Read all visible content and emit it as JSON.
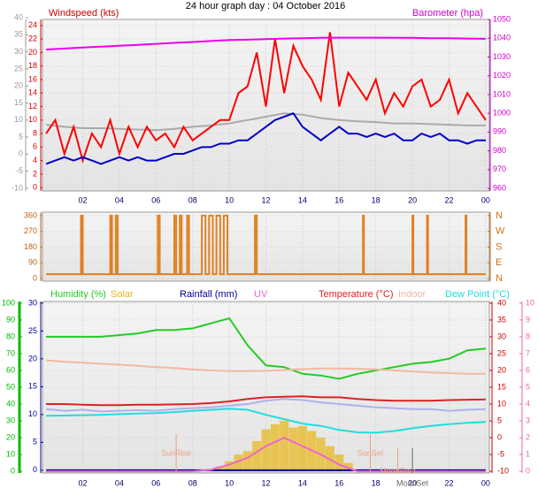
{
  "chart_data": [
    {
      "type": "line",
      "title": "24 hour graph day : 04 October 2016",
      "ylabel": "Windspeed (kts)",
      "y2label": "Barometer (hpa)",
      "xlim": [
        -0.2,
        24.2
      ],
      "xticks": [
        {
          "value": 2,
          "label": "02"
        },
        {
          "value": 4,
          "label": "04"
        },
        {
          "value": 6,
          "label": "06"
        },
        {
          "value": 8,
          "label": "08"
        },
        10,
        12,
        14,
        16,
        18,
        20,
        22,
        {
          "value": 24,
          "label": "00"
        }
      ],
      "ylim": [
        -0.5,
        24.9
      ],
      "yticks": [
        0,
        2,
        4,
        6,
        8,
        10,
        12,
        14,
        16,
        18,
        20,
        22,
        24
      ],
      "y2lim": [
        958.6,
        1050
      ],
      "y2ticks": [
        960,
        970,
        980,
        990,
        1000,
        1010,
        1020,
        1030,
        1040,
        1050
      ],
      "y3lim": [
        -10.8,
        39.5
      ],
      "y3ticks": [
        -10,
        -5,
        0,
        5,
        10,
        15,
        20,
        25,
        30,
        35,
        40
      ],
      "axis_colors": {
        "y": "#cc0000",
        "y2": "#cc00cc",
        "y3": "#999999"
      },
      "grid": true,
      "x": [
        0,
        1,
        2,
        3,
        4,
        5,
        6,
        7,
        8,
        9,
        10,
        11,
        12,
        13,
        14,
        15,
        16,
        17,
        18,
        19,
        20,
        21,
        22,
        23,
        24
      ],
      "series": [
        {
          "color": "#aaaaaa",
          "axis": "y",
          "values": [
            9.3,
            9,
            8.8,
            8.8,
            8.7,
            8.6,
            8.5,
            8.7,
            9,
            9.2,
            9.5,
            10,
            10.5,
            11,
            10.8,
            10.3,
            10,
            9.8,
            9.7,
            9.5,
            9.5,
            9.4,
            9.3,
            9.2,
            9.2
          ]
        },
        {
          "color": "#ff0000",
          "axis": "y",
          "x": [
            0,
            0.5,
            1,
            1.5,
            2,
            2.5,
            3,
            3.5,
            4,
            4.5,
            5,
            5.5,
            6,
            6.5,
            7,
            7.5,
            8,
            8.5,
            9,
            9.5,
            10,
            10.5,
            11,
            11.5,
            12,
            12.5,
            13,
            13.5,
            14,
            14.5,
            15,
            15.5,
            16,
            16.5,
            17,
            17.5,
            18,
            18.5,
            19,
            19.5,
            20,
            20.5,
            21,
            21.5,
            22,
            22.5,
            23,
            23.5,
            24
          ],
          "values": [
            8,
            10,
            5,
            9,
            4,
            8,
            6,
            10,
            5,
            9,
            6,
            9,
            7,
            8,
            6,
            9,
            7,
            8,
            9,
            10,
            10,
            14,
            15,
            20,
            12,
            22,
            14,
            21,
            18,
            16,
            13,
            23,
            12,
            17,
            15,
            13,
            16,
            11,
            14,
            12,
            15,
            16,
            12,
            13,
            16,
            11,
            14,
            12,
            10
          ]
        },
        {
          "color": "#0000cc",
          "axis": "y",
          "x": [
            0,
            0.5,
            1,
            1.5,
            2,
            2.5,
            3,
            3.5,
            4,
            4.5,
            5,
            5.5,
            6,
            6.5,
            7,
            7.5,
            8,
            8.5,
            9,
            9.5,
            10,
            10.5,
            11,
            11.5,
            12,
            12.5,
            13,
            13.5,
            14,
            14.5,
            15,
            15.5,
            16,
            16.5,
            17,
            17.5,
            18,
            18.5,
            19,
            19.5,
            20,
            20.5,
            21,
            21.5,
            22,
            22.5,
            23,
            23.5,
            24
          ],
          "values": [
            3.5,
            4,
            4.5,
            4,
            4.5,
            4,
            3.5,
            4,
            4.5,
            4,
            4.5,
            4,
            4,
            4.5,
            5,
            5,
            5.5,
            6,
            6,
            6.5,
            6.5,
            7,
            7,
            8,
            9,
            10,
            10.5,
            11,
            9,
            8,
            7,
            8,
            9,
            8,
            8,
            7.5,
            8,
            7.5,
            8,
            7,
            7,
            8,
            7.5,
            8,
            7,
            7,
            6.5,
            7,
            7
          ]
        },
        {
          "color": "#ee00ee",
          "axis": "y2",
          "values": [
            1034,
            1034.5,
            1035,
            1035.5,
            1036,
            1036.5,
            1037,
            1037.5,
            1038,
            1038.5,
            1039,
            1039.2,
            1039.5,
            1039.8,
            1040,
            1040.2,
            1040.3,
            1040.3,
            1040.3,
            1040.2,
            1040.2,
            1040,
            1040,
            1039.8,
            1039.7
          ]
        }
      ]
    },
    {
      "type": "line",
      "xlim": [
        -0.2,
        24.2
      ],
      "ylim": [
        -15,
        380
      ],
      "yticks": [
        0,
        90,
        180,
        270,
        360
      ],
      "y2lim": [
        -15,
        380
      ],
      "y2ticks": [
        {
          "value": 360,
          "label": "N"
        },
        {
          "value": 270,
          "label": "W"
        },
        {
          "value": 180,
          "label": "S"
        },
        {
          "value": 90,
          "label": "E"
        },
        {
          "value": 0,
          "label": "N"
        }
      ],
      "axis_colors": {
        "y": "#c06010",
        "y2": "#d07010"
      },
      "grid": true,
      "series": [
        {
          "color": "#e08020",
          "axis": "y",
          "x": [
            0,
            1.9,
            1.9,
            2.0,
            2.0,
            3.5,
            3.5,
            3.6,
            3.6,
            3.8,
            3.8,
            3.9,
            3.9,
            6.1,
            6.1,
            6.2,
            6.2,
            7.0,
            7.0,
            7.1,
            7.1,
            7.3,
            7.3,
            7.4,
            7.4,
            7.7,
            7.7,
            7.8,
            7.8,
            8.5,
            8.5,
            8.7,
            8.7,
            8.9,
            8.9,
            9.1,
            9.1,
            9.3,
            9.3,
            9.5,
            9.5,
            9.7,
            9.7,
            9.9,
            9.9,
            11.4,
            11.4,
            11.5,
            11.5,
            17.3,
            17.3,
            17.35,
            17.35,
            20.0,
            20.0,
            20.05,
            20.05,
            20.8,
            20.8,
            20.85,
            20.85,
            22.9,
            22.9,
            22.95,
            22.95,
            24
          ],
          "values": [
            25,
            25,
            360,
            360,
            25,
            25,
            360,
            360,
            25,
            25,
            360,
            360,
            25,
            25,
            360,
            360,
            25,
            25,
            360,
            360,
            25,
            25,
            360,
            360,
            25,
            25,
            360,
            360,
            25,
            25,
            360,
            360,
            25,
            25,
            360,
            360,
            25,
            25,
            360,
            360,
            25,
            25,
            360,
            360,
            25,
            25,
            360,
            360,
            25,
            25,
            360,
            360,
            25,
            25,
            360,
            360,
            25,
            25,
            360,
            360,
            25,
            25,
            360,
            360,
            25,
            25
          ]
        }
      ]
    },
    {
      "type": "line",
      "xlim": [
        -0.2,
        24.2
      ],
      "xticks": [
        {
          "value": 2,
          "label": "02"
        },
        {
          "value": 4,
          "label": "04"
        },
        {
          "value": 6,
          "label": "06"
        },
        {
          "value": 8,
          "label": "08"
        },
        10,
        12,
        14,
        16,
        18,
        20,
        22,
        {
          "value": 24,
          "label": "00"
        }
      ],
      "ylim": [
        -1,
        101
      ],
      "yticks": [
        0,
        10,
        20,
        30,
        40,
        50,
        60,
        70,
        80,
        90,
        100
      ],
      "y2lim": [
        -10.5,
        40.5
      ],
      "y2ticks": [
        -10,
        -5,
        0,
        5,
        10,
        15,
        20,
        25,
        30,
        35,
        40
      ],
      "y3lim": [
        -0.5,
        30.3
      ],
      "y3ticks": [
        0,
        5,
        10,
        15,
        20,
        25,
        30
      ],
      "y4lim": [
        -0.1,
        10.1
      ],
      "y4ticks": [
        0,
        1,
        2,
        3,
        4,
        5,
        6,
        7,
        8,
        9,
        10
      ],
      "axis_colors": {
        "y": "#00bb00",
        "y2": "#cc0000",
        "y3": "#000099",
        "y4": "#ee66aa"
      },
      "grid": true,
      "x": [
        0,
        1,
        2,
        3,
        4,
        5,
        6,
        7,
        8,
        9,
        10,
        11,
        12,
        13,
        14,
        15,
        16,
        17,
        18,
        19,
        20,
        21,
        22,
        23,
        24
      ],
      "series": [
        {
          "name": "Humidity (%)",
          "color": "#22cc22",
          "axis": "y",
          "values": [
            80,
            80,
            80,
            80,
            81,
            82,
            84,
            84,
            85,
            88,
            91,
            75,
            63,
            62,
            58,
            57,
            55,
            58,
            60,
            62,
            64,
            65,
            67,
            72,
            73
          ]
        },
        {
          "name": "Solar",
          "color": "#e8b820",
          "axis": "y",
          "style": "bars",
          "x": [
            9,
            9.5,
            10,
            10.5,
            11,
            11.5,
            12,
            12.5,
            13,
            13.5,
            14,
            14.5,
            15,
            15.5,
            16,
            16.5,
            17
          ],
          "values": [
            1,
            3,
            6,
            10,
            12,
            18,
            25,
            28,
            30,
            26,
            27,
            24,
            20,
            15,
            10,
            5,
            1
          ]
        },
        {
          "name": "Rainfall (mm)",
          "color": "#000099",
          "axis": "y3",
          "values": [
            0,
            0,
            0,
            0,
            0,
            0,
            0,
            0,
            0,
            0,
            0,
            0,
            0,
            0,
            0,
            0,
            0,
            0,
            0,
            0,
            0,
            0,
            0,
            0,
            0
          ]
        },
        {
          "name": "UV",
          "color": "#ee66cc",
          "axis": "y4",
          "values": [
            0,
            0,
            0,
            0,
            0,
            0,
            0,
            0,
            0,
            0.1,
            0.4,
            0.8,
            1.5,
            2,
            1.5,
            1,
            0.4,
            0,
            0,
            0,
            0,
            0,
            0,
            0,
            0
          ]
        },
        {
          "name": "Temperature (°C)",
          "color": "#dd2222",
          "axis": "y2",
          "values": [
            10,
            10,
            9.8,
            9.7,
            9.7,
            9.8,
            9.8,
            9.9,
            10,
            10.3,
            10.8,
            11.5,
            12,
            12.2,
            12.3,
            12,
            12,
            11.5,
            11.2,
            11,
            11,
            11,
            11.2,
            11.3,
            11.4
          ]
        },
        {
          "name": "Indoor",
          "color": "#f4b8a0",
          "axis": "y2",
          "values": [
            23,
            22.6,
            22.3,
            22,
            21.7,
            21.4,
            21,
            20.7,
            20.3,
            20,
            19.8,
            19.8,
            19.9,
            20.1,
            20.4,
            20.6,
            20.6,
            20.5,
            20.3,
            20,
            19.7,
            19.4,
            19.2,
            19,
            19
          ]
        },
        {
          "name": "Dew Point (°C)",
          "color": "#22dddd",
          "axis": "y2",
          "values": [
            6.5,
            6.6,
            6.7,
            6.8,
            7,
            7.2,
            7.3,
            7.6,
            8,
            8.3,
            8.6,
            8.3,
            6.8,
            5.5,
            4.2,
            3.5,
            2.3,
            1.6,
            1.5,
            2,
            2.8,
            3.5,
            4,
            4.4,
            4.7
          ]
        },
        {
          "color": "#b0b0f0",
          "axis": "y2",
          "values": [
            8.5,
            8,
            8.3,
            7.8,
            8,
            8.2,
            8,
            8.5,
            8.8,
            9,
            9.5,
            10,
            11,
            11.5,
            11.2,
            10.5,
            10,
            9.5,
            9,
            8.8,
            8.5,
            8.5,
            8,
            8.3,
            8.5
          ]
        }
      ],
      "annotations": [
        {
          "text": "SunRise",
          "x": 7.1,
          "color": "#f0a080"
        },
        {
          "text": "SunSet",
          "x": 17.7,
          "color": "#f0a080"
        },
        {
          "text": "MoonRise",
          "x": 19.2,
          "color": "#f0a080"
        },
        {
          "text": "MoonSet",
          "x": 20.0,
          "color": "#666666"
        }
      ]
    }
  ]
}
